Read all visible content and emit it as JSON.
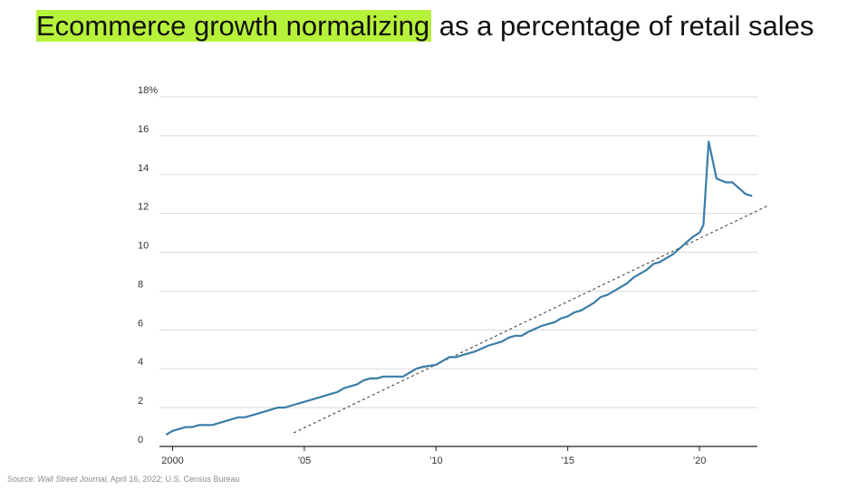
{
  "title": {
    "highlight": "Ecommerce growth normalizing",
    "rest": " as a percentage of retail sales"
  },
  "colors": {
    "highlight": "#b6f23a",
    "line": "#3b7ca8",
    "trend": "#333333",
    "grid": "#d9d9d9"
  },
  "source": {
    "prefix": "Source:  ",
    "publication": "Wall Street Journal,",
    "rest": " April 16, 2022; U.S. Census Bureau"
  },
  "chart_data": {
    "type": "line",
    "title": "Ecommerce growth normalizing as a percentage of retail sales",
    "xlabel": "",
    "ylabel": "",
    "xlim": [
      1999.5,
      2022.2
    ],
    "ylim": [
      0,
      18
    ],
    "grid": true,
    "y_ticks": [
      {
        "value": 0,
        "label": "0"
      },
      {
        "value": 2,
        "label": "2"
      },
      {
        "value": 4,
        "label": "4"
      },
      {
        "value": 6,
        "label": "6"
      },
      {
        "value": 8,
        "label": "8"
      },
      {
        "value": 10,
        "label": "10"
      },
      {
        "value": 12,
        "label": "12"
      },
      {
        "value": 14,
        "label": "14"
      },
      {
        "value": 16,
        "label": "16"
      },
      {
        "value": 18,
        "label": "18%"
      }
    ],
    "x_ticks": [
      {
        "value": 2000,
        "label": "2000"
      },
      {
        "value": 2005,
        "label": "’05"
      },
      {
        "value": 2010,
        "label": "’10"
      },
      {
        "value": 2015,
        "label": "’15"
      },
      {
        "value": 2020,
        "label": "’20"
      }
    ],
    "series": [
      {
        "points": [
          [
            1999.75,
            0.6
          ],
          [
            2000.0,
            0.8
          ],
          [
            2000.5,
            1.0
          ],
          [
            2000.75,
            1.0
          ],
          [
            2001.0,
            1.1
          ],
          [
            2001.5,
            1.1
          ],
          [
            2002.0,
            1.3
          ],
          [
            2002.5,
            1.5
          ],
          [
            2002.75,
            1.5
          ],
          [
            2003.0,
            1.6
          ],
          [
            2003.5,
            1.8
          ],
          [
            2004.0,
            2.0
          ],
          [
            2004.25,
            2.0
          ],
          [
            2004.5,
            2.1
          ],
          [
            2005.0,
            2.3
          ],
          [
            2005.5,
            2.5
          ],
          [
            2006.0,
            2.7
          ],
          [
            2006.25,
            2.8
          ],
          [
            2006.5,
            3.0
          ],
          [
            2007.0,
            3.2
          ],
          [
            2007.25,
            3.4
          ],
          [
            2007.5,
            3.5
          ],
          [
            2007.75,
            3.5
          ],
          [
            2008.0,
            3.6
          ],
          [
            2008.5,
            3.6
          ],
          [
            2008.75,
            3.6
          ],
          [
            2009.0,
            3.8
          ],
          [
            2009.25,
            4.0
          ],
          [
            2009.5,
            4.1
          ],
          [
            2010.0,
            4.2
          ],
          [
            2010.25,
            4.4
          ],
          [
            2010.5,
            4.6
          ],
          [
            2010.75,
            4.6
          ],
          [
            2011.0,
            4.7
          ],
          [
            2011.5,
            4.9
          ],
          [
            2012.0,
            5.2
          ],
          [
            2012.5,
            5.4
          ],
          [
            2012.75,
            5.6
          ],
          [
            2013.0,
            5.7
          ],
          [
            2013.25,
            5.7
          ],
          [
            2013.5,
            5.9
          ],
          [
            2014.0,
            6.2
          ],
          [
            2014.5,
            6.4
          ],
          [
            2014.75,
            6.6
          ],
          [
            2015.0,
            6.7
          ],
          [
            2015.25,
            6.9
          ],
          [
            2015.5,
            7.0
          ],
          [
            2016.0,
            7.4
          ],
          [
            2016.25,
            7.7
          ],
          [
            2016.5,
            7.8
          ],
          [
            2017.0,
            8.2
          ],
          [
            2017.25,
            8.4
          ],
          [
            2017.5,
            8.7
          ],
          [
            2018.0,
            9.1
          ],
          [
            2018.25,
            9.4
          ],
          [
            2018.5,
            9.5
          ],
          [
            2019.0,
            9.9
          ],
          [
            2019.25,
            10.2
          ],
          [
            2019.5,
            10.5
          ],
          [
            2019.75,
            10.8
          ],
          [
            2020.0,
            11.0
          ],
          [
            2020.15,
            11.4
          ],
          [
            2020.35,
            15.7
          ],
          [
            2020.65,
            13.8
          ],
          [
            2021.0,
            13.6
          ],
          [
            2021.25,
            13.6
          ],
          [
            2021.5,
            13.3
          ],
          [
            2021.75,
            13.0
          ],
          [
            2022.0,
            12.9
          ]
        ]
      }
    ],
    "trendline": {
      "style": "dashed",
      "points": [
        [
          2004.6,
          0.7
        ],
        [
          2022.6,
          12.4
        ]
      ]
    }
  }
}
